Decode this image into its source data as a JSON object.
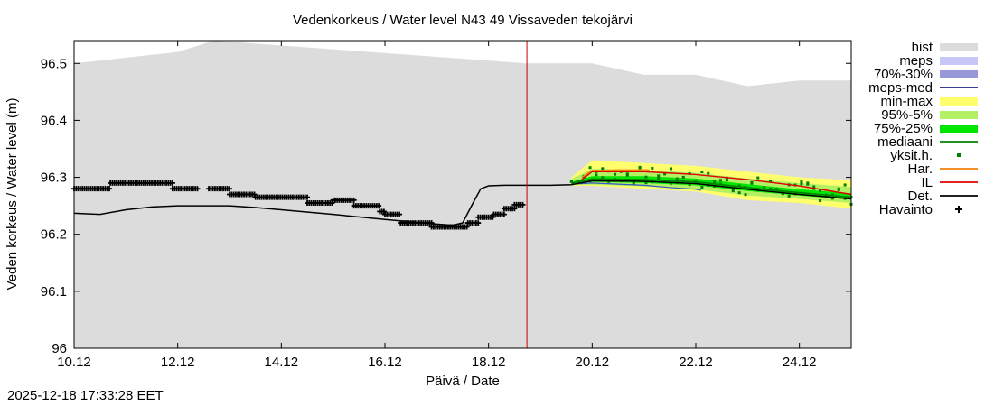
{
  "timestamp": "2025-12-18 17:33:28 EET",
  "chart_data": {
    "type": "line",
    "title": "Vedenkorkeus / Water level   N43 49 Vissaveden tekojärvi",
    "xlabel": "Päivä / Date",
    "ylabel": "Veden korkeus / Water level (m)",
    "xlim": [
      0,
      15
    ],
    "ylim": [
      96.0,
      96.54
    ],
    "x_ticks": [
      {
        "x": 0,
        "label": "10.12"
      },
      {
        "x": 2,
        "label": "12.12"
      },
      {
        "x": 4,
        "label": "14.12"
      },
      {
        "x": 6,
        "label": "16.12"
      },
      {
        "x": 8,
        "label": "18.12"
      },
      {
        "x": 10,
        "label": "20.12"
      },
      {
        "x": 12,
        "label": "22.12"
      },
      {
        "x": 14,
        "label": "24.12"
      }
    ],
    "y_ticks": [
      {
        "y": 96.0,
        "label": "96"
      },
      {
        "y": 96.1,
        "label": "96.1"
      },
      {
        "y": 96.2,
        "label": "96.2"
      },
      {
        "y": 96.3,
        "label": "96.3"
      },
      {
        "y": 96.4,
        "label": "96.4"
      },
      {
        "y": 96.5,
        "label": "96.5"
      }
    ],
    "forecast_start_x": 8.74,
    "legend": [
      {
        "key": "hist",
        "label": "hist",
        "style": "box",
        "color": "#dcdcdc"
      },
      {
        "key": "meps",
        "label": "meps",
        "style": "box",
        "color": "#c8c8f8"
      },
      {
        "key": "p70_30",
        "label": "70%-30%",
        "style": "box",
        "color": "#9898d8"
      },
      {
        "key": "meps_med",
        "label": "meps-med",
        "style": "line",
        "color": "#202080"
      },
      {
        "key": "minmax",
        "label": "min-max",
        "style": "box",
        "color": "#ffff6e"
      },
      {
        "key": "p95_5",
        "label": "95%-5%",
        "style": "box",
        "color": "#b4f064"
      },
      {
        "key": "p75_25",
        "label": "75%-25%",
        "style": "box",
        "color": "#00e600"
      },
      {
        "key": "mediaani",
        "label": "mediaani",
        "style": "line",
        "color": "#008000"
      },
      {
        "key": "yksit",
        "label": "yksit.h.",
        "style": "dot",
        "color": "#008000"
      },
      {
        "key": "har",
        "label": "Har.",
        "style": "line",
        "color": "#f08010"
      },
      {
        "key": "il",
        "label": "IL",
        "style": "line",
        "color": "#e00000"
      },
      {
        "key": "det",
        "label": "Det.",
        "style": "line",
        "color": "#000000"
      },
      {
        "key": "havainto",
        "label": "Havainto",
        "style": "plus",
        "color": "#000000"
      }
    ],
    "series": {
      "hist_max": {
        "x": [
          0,
          2,
          2.7,
          8.74,
          10,
          11,
          12,
          13,
          14,
          15
        ],
        "y": [
          96.5,
          96.52,
          96.54,
          96.5,
          96.5,
          96.48,
          96.48,
          96.46,
          96.47,
          96.47
        ]
      },
      "minmax": {
        "upper_x": [
          9.6,
          10,
          11,
          12,
          13,
          14,
          15
        ],
        "upper_y": [
          96.3,
          96.33,
          96.325,
          96.32,
          96.31,
          96.3,
          96.295
        ],
        "lower_y": [
          96.285,
          96.285,
          96.28,
          96.275,
          96.26,
          96.255,
          96.245
        ]
      },
      "p95_5": {
        "upper_y": [
          96.297,
          96.315,
          96.313,
          96.308,
          96.298,
          96.29,
          96.283
        ],
        "lower_y": [
          96.287,
          96.287,
          96.284,
          96.279,
          96.268,
          96.262,
          96.255
        ]
      },
      "p75_25": {
        "upper_y": [
          96.292,
          96.302,
          96.302,
          96.298,
          96.288,
          96.279,
          96.272
        ],
        "lower_y": [
          96.288,
          96.292,
          96.29,
          96.286,
          96.276,
          96.268,
          96.261
        ]
      },
      "mediaani": {
        "x": [
          9.6,
          10,
          11,
          12,
          13,
          14,
          15
        ],
        "y": [
          96.29,
          96.297,
          96.296,
          96.292,
          96.282,
          96.273,
          96.265
        ]
      },
      "meps_med": {
        "x": [
          9.6,
          10,
          10.5,
          11,
          11.5,
          12,
          12.1
        ],
        "y": [
          96.288,
          96.29,
          96.288,
          96.286,
          96.282,
          96.279,
          96.277
        ]
      },
      "har": {
        "x": [
          9.8,
          10,
          10.5,
          11,
          11.1
        ],
        "y": [
          96.3,
          96.312,
          96.313,
          96.313,
          96.313
        ]
      },
      "il": {
        "x": [
          9.8,
          10,
          11,
          12,
          13,
          14,
          15
        ],
        "y": [
          96.296,
          96.31,
          96.31,
          96.305,
          96.296,
          96.285,
          96.27
        ]
      },
      "det": {
        "x": [
          0,
          0.5,
          1,
          1.5,
          2,
          2.5,
          3,
          3.5,
          4,
          5,
          6,
          6.5,
          7,
          7.3,
          7.5,
          7.7,
          7.85,
          8,
          8.3,
          8.74,
          9.2,
          9.6,
          10,
          11,
          12,
          13,
          14,
          15
        ],
        "y": [
          96.237,
          96.235,
          96.243,
          96.248,
          96.25,
          96.25,
          96.25,
          96.247,
          96.243,
          96.235,
          96.226,
          96.222,
          96.218,
          96.216,
          96.22,
          96.255,
          96.28,
          96.285,
          96.286,
          96.286,
          96.286,
          96.287,
          96.294,
          96.293,
          96.289,
          96.279,
          96.27,
          96.262
        ]
      },
      "havainto": {
        "segments": [
          {
            "x0": 0.0,
            "x1": 0.7,
            "y": 96.28
          },
          {
            "x0": 0.7,
            "x1": 1.9,
            "y": 96.29
          },
          {
            "x0": 1.9,
            "x1": 2.4,
            "y": 96.28
          },
          {
            "x0": 2.6,
            "x1": 3.0,
            "y": 96.28
          },
          {
            "x0": 3.0,
            "x1": 3.5,
            "y": 96.27
          },
          {
            "x0": 3.5,
            "x1": 4.5,
            "y": 96.265
          },
          {
            "x0": 4.5,
            "x1": 5.0,
            "y": 96.255
          },
          {
            "x0": 5.0,
            "x1": 5.4,
            "y": 96.26
          },
          {
            "x0": 5.4,
            "x1": 5.9,
            "y": 96.25
          },
          {
            "x0": 5.9,
            "x1": 6.0,
            "y": 96.24
          },
          {
            "x0": 6.0,
            "x1": 6.3,
            "y": 96.235
          },
          {
            "x0": 6.3,
            "x1": 6.9,
            "y": 96.22
          },
          {
            "x0": 6.9,
            "x1": 7.6,
            "y": 96.213
          },
          {
            "x0": 7.6,
            "x1": 7.8,
            "y": 96.22
          },
          {
            "x0": 7.8,
            "x1": 8.1,
            "y": 96.23
          },
          {
            "x0": 8.1,
            "x1": 8.3,
            "y": 96.235
          },
          {
            "x0": 8.3,
            "x1": 8.5,
            "y": 96.245
          },
          {
            "x0": 8.5,
            "x1": 8.68,
            "y": 96.252
          }
        ]
      }
    }
  }
}
